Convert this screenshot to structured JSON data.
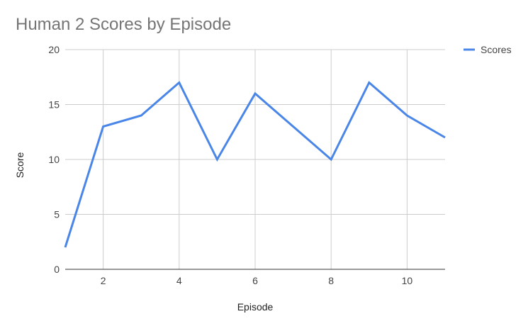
{
  "chart_data": {
    "type": "line",
    "title": "Human 2 Scores by Episode",
    "xlabel": "Episode",
    "ylabel": "Score",
    "x": [
      1,
      2,
      3,
      4,
      5,
      6,
      7,
      8,
      9,
      10,
      11
    ],
    "xlim": [
      1,
      11
    ],
    "ylim": [
      0,
      20
    ],
    "xticks": [
      2,
      4,
      6,
      8,
      10
    ],
    "yticks": [
      0,
      5,
      10,
      15,
      20
    ],
    "grid": true,
    "legend": "right",
    "series": [
      {
        "name": "Scores",
        "color": "#4a86e8",
        "values": [
          2,
          13,
          14,
          17,
          10,
          16,
          13,
          10,
          17,
          14,
          12
        ]
      }
    ]
  }
}
